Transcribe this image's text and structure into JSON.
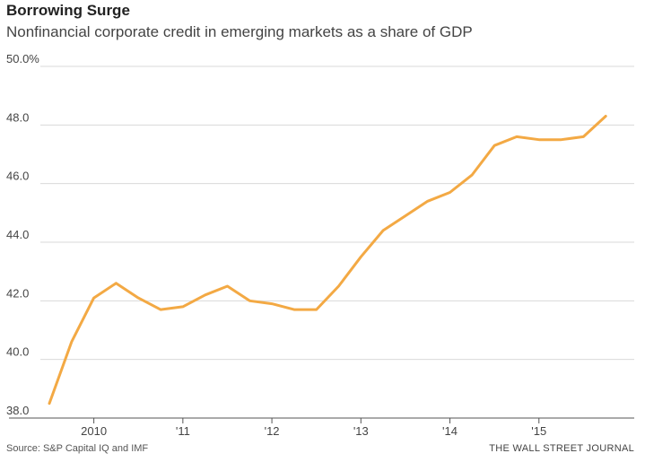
{
  "header": {
    "title": "Borrowing Surge",
    "subtitle": "Nonfinancial corporate credit in emerging markets as a share of GDP"
  },
  "footer": {
    "source": "Source: S&P Capital IQ and IMF",
    "credit": "THE WALL STREET JOURNAL"
  },
  "colors": {
    "line": "#f3a944",
    "grid": "#d9d9d9",
    "axis": "#555555"
  },
  "chart_data": {
    "type": "line",
    "title": "Borrowing Surge",
    "subtitle": "Nonfinancial corporate credit in emerging markets as a share of GDP",
    "xlabel": "",
    "ylabel": "",
    "ylim": [
      38.0,
      50.0
    ],
    "yticks": [
      {
        "value": 50.0,
        "label": "50.0%"
      },
      {
        "value": 48.0,
        "label": "48.0"
      },
      {
        "value": 46.0,
        "label": "46.0"
      },
      {
        "value": 44.0,
        "label": "44.0"
      },
      {
        "value": 42.0,
        "label": "42.0"
      },
      {
        "value": 40.0,
        "label": "40.0"
      },
      {
        "value": 38.0,
        "label": "38.0"
      }
    ],
    "xlim": [
      2009.5,
      2016.0
    ],
    "xticks": [
      {
        "value": 2010.0,
        "label": "2010"
      },
      {
        "value": 2011.0,
        "label": "'11"
      },
      {
        "value": 2012.0,
        "label": "'12"
      },
      {
        "value": 2013.0,
        "label": "'13"
      },
      {
        "value": 2014.0,
        "label": "'14"
      },
      {
        "value": 2015.0,
        "label": "'15"
      }
    ],
    "grid": true,
    "series": [
      {
        "x": [
          2009.5,
          2009.75,
          2010.0,
          2010.25,
          2010.5,
          2010.75,
          2011.0,
          2011.25,
          2011.5,
          2011.75,
          2012.0,
          2012.25,
          2012.5,
          2012.75,
          2013.0,
          2013.25,
          2013.5,
          2013.75,
          2014.0,
          2014.25,
          2014.5,
          2014.75,
          2015.0,
          2015.25,
          2015.5,
          2015.75
        ],
        "y": [
          38.5,
          40.6,
          42.1,
          42.6,
          42.1,
          41.7,
          41.8,
          42.2,
          42.5,
          42.0,
          41.9,
          41.7,
          41.7,
          42.5,
          43.5,
          44.4,
          44.9,
          45.4,
          45.7,
          46.3,
          47.3,
          47.6,
          47.5,
          47.5,
          47.6,
          48.3
        ]
      }
    ]
  }
}
